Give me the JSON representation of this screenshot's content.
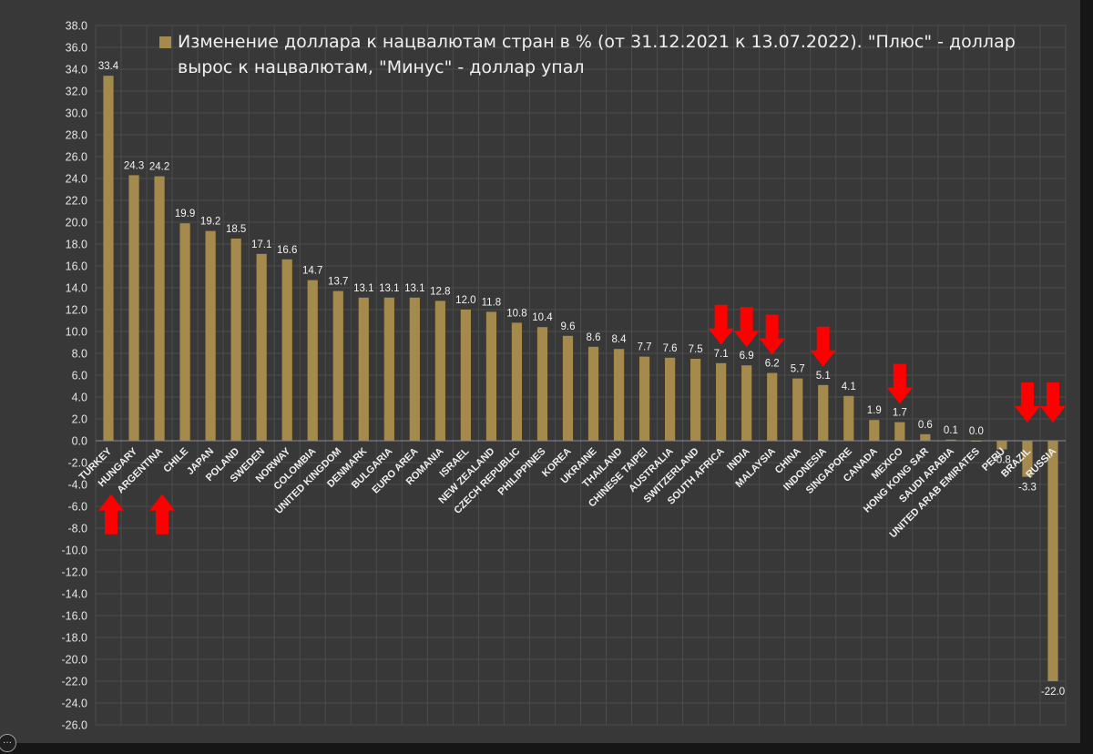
{
  "chart_data": {
    "type": "bar",
    "title": "Изменение доллара к нацвалютам стран в % (от 31.12.2021 к 13.07.2022). \"Плюс\" - доллар вырос к нацвалютам, \"Минус\" - доллар упал",
    "legend": "Изменение доллара к нацвалютам стран в % (от 31.12.2021 к 13.07.2022). \"Плюс\" - доллар вырос к нацвалютам, \"Минус\" - доллар упал",
    "legend_position": "top",
    "xlabel": "",
    "ylabel": "",
    "ylim": [
      -26,
      38
    ],
    "ytick_step": 2,
    "grid": true,
    "categories": [
      "TURKEY",
      "HUNGARY",
      "ARGENTINA",
      "CHILE",
      "JAPAN",
      "POLAND",
      "SWEDEN",
      "NORWAY",
      "COLOMBIA",
      "UNITED KINGDOM",
      "DENMARK",
      "BULGARIA",
      "EURO AREA",
      "ROMANIA",
      "ISRAEL",
      "NEW ZEALAND",
      "CZECH REPUBLIC",
      "PHILIPPINES",
      "KOREA",
      "UKRAINE",
      "THAILAND",
      "CHINESE TAIPEI",
      "AUSTRALIA",
      "SWITZERLAND",
      "SOUTH AFRICA",
      "INDIA",
      "MALAYSIA",
      "CHINA",
      "INDONESIA",
      "SINGAPORE",
      "CANADA",
      "MEXICO",
      "HONG KONG SAR",
      "SAUDI ARABIA",
      "UNITED ARAB EMIRATES",
      "PERU",
      "BRAZIL",
      "RUSSIA"
    ],
    "values": [
      33.4,
      24.3,
      24.2,
      19.9,
      19.2,
      18.5,
      17.1,
      16.6,
      14.7,
      13.7,
      13.1,
      13.1,
      13.1,
      12.8,
      12.0,
      11.8,
      10.8,
      10.4,
      9.6,
      8.6,
      8.4,
      7.7,
      7.6,
      7.5,
      7.1,
      6.9,
      6.2,
      5.7,
      5.1,
      4.1,
      1.9,
      1.7,
      0.6,
      0.1,
      0.0,
      -0.8,
      -3.3,
      -22.0
    ],
    "annotations": {
      "up_arrows": [
        "TURKEY",
        "ARGENTINA"
      ],
      "down_arrows": [
        "SOUTH AFRICA",
        "INDIA",
        "MALAYSIA",
        "INDONESIA",
        "MEXICO",
        "BRAZIL",
        "RUSSIA"
      ]
    }
  },
  "colors": {
    "background": "#383838",
    "outer": "#161616",
    "bar": "#a48a4c",
    "grid": "#4c4c4c",
    "text": "#f0f0f0",
    "arrow": "#ff0000"
  },
  "options_button": "…"
}
